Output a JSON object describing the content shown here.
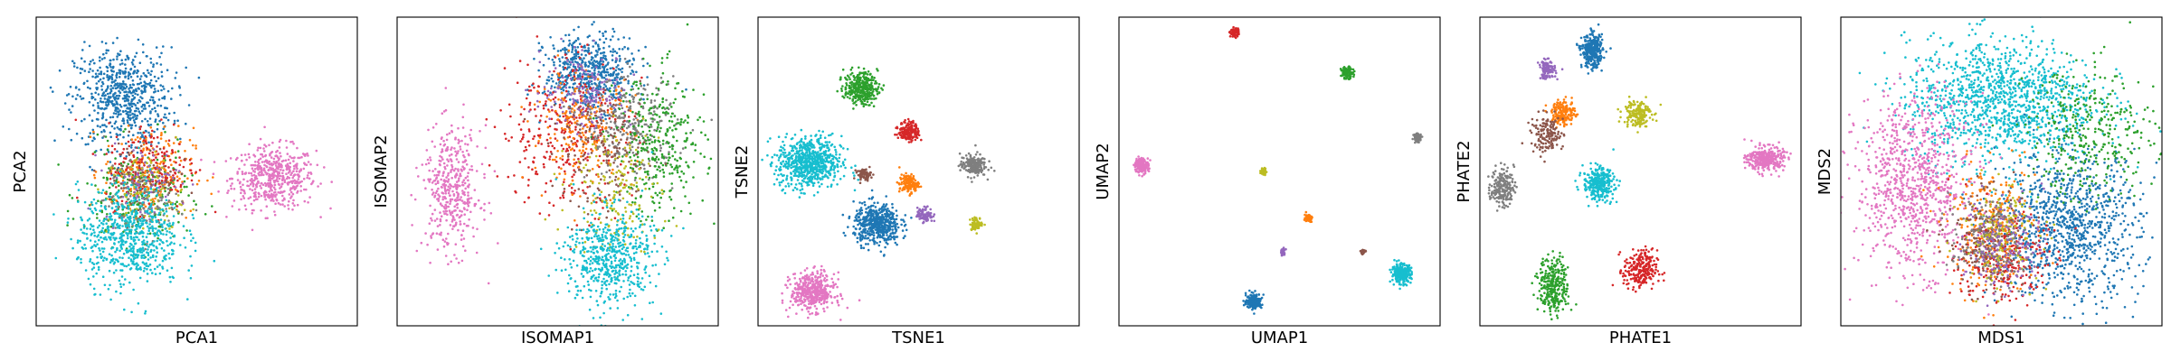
{
  "chart_data": [
    {
      "type": "scatter",
      "xlabel": "PCA1",
      "ylabel": "PCA2",
      "xlim": [
        0,
        100
      ],
      "ylim": [
        0,
        100
      ],
      "clusters": [
        {
          "color": "#e377c2",
          "cx": 74,
          "cy": 48,
          "sx": 6.5,
          "sy": 5,
          "n": 520
        },
        {
          "color": "#1f77b4",
          "cx": 27,
          "cy": 74,
          "sx": 7.5,
          "sy": 8,
          "n": 650
        },
        {
          "color": "#2ca02c",
          "cx": 31,
          "cy": 42,
          "sx": 8,
          "sy": 8,
          "n": 260
        },
        {
          "color": "#ff7f0e",
          "cx": 35,
          "cy": 50,
          "sx": 7,
          "sy": 7,
          "n": 200
        },
        {
          "color": "#d62728",
          "cx": 36,
          "cy": 52,
          "sx": 7,
          "sy": 7,
          "n": 180
        },
        {
          "color": "#8c564b",
          "cx": 32,
          "cy": 48,
          "sx": 6,
          "sy": 6,
          "n": 90
        },
        {
          "color": "#9467bd",
          "cx": 33,
          "cy": 46,
          "sx": 6,
          "sy": 6,
          "n": 90
        },
        {
          "color": "#bcbd22",
          "cx": 34,
          "cy": 42,
          "sx": 6,
          "sy": 7,
          "n": 100
        },
        {
          "color": "#7f7f7f",
          "cx": 33,
          "cy": 40,
          "sx": 6,
          "sy": 6,
          "n": 90
        },
        {
          "color": "#17becf",
          "cx": 29,
          "cy": 29,
          "sx": 8,
          "sy": 8,
          "n": 650
        }
      ]
    },
    {
      "type": "scatter",
      "xlabel": "ISOMAP1",
      "ylabel": "ISOMAP2",
      "xlim": [
        0,
        100
      ],
      "ylim": [
        0,
        100
      ],
      "clusters": [
        {
          "color": "#e377c2",
          "cx": 17,
          "cy": 44,
          "sx": 4.5,
          "sy": 10,
          "n": 420
        },
        {
          "color": "#1f77b4",
          "cx": 60,
          "cy": 82,
          "sx": 7,
          "sy": 6,
          "n": 550
        },
        {
          "color": "#d62728",
          "cx": 52,
          "cy": 63,
          "sx": 10,
          "sy": 13,
          "n": 330
        },
        {
          "color": "#ff7f0e",
          "cx": 58,
          "cy": 64,
          "sx": 8,
          "sy": 9,
          "n": 220
        },
        {
          "color": "#9467bd",
          "cx": 59,
          "cy": 76,
          "sx": 7,
          "sy": 6,
          "n": 160
        },
        {
          "color": "#7f7f7f",
          "cx": 73,
          "cy": 64,
          "sx": 7,
          "sy": 8,
          "n": 270
        },
        {
          "color": "#2ca02c",
          "cx": 82,
          "cy": 58,
          "sx": 7,
          "sy": 12,
          "n": 330
        },
        {
          "color": "#8c564b",
          "cx": 64,
          "cy": 55,
          "sx": 8,
          "sy": 10,
          "n": 150
        },
        {
          "color": "#bcbd22",
          "cx": 68,
          "cy": 44,
          "sx": 7,
          "sy": 10,
          "n": 170
        },
        {
          "color": "#17becf",
          "cx": 66,
          "cy": 22,
          "sx": 7,
          "sy": 8,
          "n": 560
        }
      ]
    },
    {
      "type": "scatter",
      "xlabel": "TSNE1",
      "ylabel": "TSNE2",
      "xlim": [
        0,
        100
      ],
      "ylim": [
        0,
        100
      ],
      "clusters": [
        {
          "color": "#2ca02c",
          "cx": 32,
          "cy": 77,
          "sx": 2.6,
          "sy": 2.6,
          "n": 330
        },
        {
          "color": "#d62728",
          "cx": 47,
          "cy": 63,
          "sx": 1.6,
          "sy": 1.6,
          "n": 170
        },
        {
          "color": "#17becf",
          "cx": 16,
          "cy": 53,
          "sx": 5,
          "sy": 4.2,
          "n": 700
        },
        {
          "color": "#8c564b",
          "cx": 33,
          "cy": 49,
          "sx": 1.1,
          "sy": 0.9,
          "n": 60
        },
        {
          "color": "#ff7f0e",
          "cx": 47,
          "cy": 46,
          "sx": 1.5,
          "sy": 1.5,
          "n": 130
        },
        {
          "color": "#7f7f7f",
          "cx": 67,
          "cy": 52,
          "sx": 2,
          "sy": 1.8,
          "n": 200
        },
        {
          "color": "#9467bd",
          "cx": 52,
          "cy": 36,
          "sx": 1.2,
          "sy": 1.2,
          "n": 90
        },
        {
          "color": "#bcbd22",
          "cx": 68,
          "cy": 33,
          "sx": 1,
          "sy": 1,
          "n": 70
        },
        {
          "color": "#1f77b4",
          "cx": 37,
          "cy": 33,
          "sx": 3.6,
          "sy": 3.3,
          "n": 520
        },
        {
          "color": "#e377c2",
          "cx": 17,
          "cy": 11,
          "sx": 3.4,
          "sy": 3,
          "n": 450
        }
      ]
    },
    {
      "type": "scatter",
      "xlabel": "UMAP1",
      "ylabel": "UMAP2",
      "xlim": [
        0,
        100
      ],
      "ylim": [
        0,
        100
      ],
      "clusters": [
        {
          "color": "#d62728",
          "cx": 36,
          "cy": 95,
          "sx": 0.7,
          "sy": 0.7,
          "n": 80
        },
        {
          "color": "#2ca02c",
          "cx": 71,
          "cy": 82,
          "sx": 0.9,
          "sy": 0.9,
          "n": 110
        },
        {
          "color": "#7f7f7f",
          "cx": 93,
          "cy": 61,
          "sx": 0.6,
          "sy": 0.7,
          "n": 80
        },
        {
          "color": "#e377c2",
          "cx": 7,
          "cy": 52,
          "sx": 1.1,
          "sy": 1.2,
          "n": 170
        },
        {
          "color": "#bcbd22",
          "cx": 45,
          "cy": 50,
          "sx": 0.4,
          "sy": 0.6,
          "n": 40
        },
        {
          "color": "#ff7f0e",
          "cx": 59,
          "cy": 35,
          "sx": 0.6,
          "sy": 0.6,
          "n": 60
        },
        {
          "color": "#8c564b",
          "cx": 76,
          "cy": 24,
          "sx": 0.4,
          "sy": 0.4,
          "n": 30
        },
        {
          "color": "#9467bd",
          "cx": 51,
          "cy": 24,
          "sx": 0.4,
          "sy": 0.6,
          "n": 40
        },
        {
          "color": "#17becf",
          "cx": 88,
          "cy": 17,
          "sx": 1.5,
          "sy": 1.5,
          "n": 260
        },
        {
          "color": "#1f77b4",
          "cx": 42,
          "cy": 8,
          "sx": 1.2,
          "sy": 1.2,
          "n": 200
        }
      ]
    },
    {
      "type": "scatter",
      "xlabel": "PHATE1",
      "ylabel": "PHATE2",
      "xlim": [
        0,
        100
      ],
      "ylim": [
        0,
        100
      ],
      "clusters": [
        {
          "color": "#1f77b4",
          "cx": 35,
          "cy": 89,
          "sx": 1.6,
          "sy": 2.6,
          "n": 350
        },
        {
          "color": "#9467bd",
          "cx": 21,
          "cy": 83,
          "sx": 1.3,
          "sy": 1.5,
          "n": 110
        },
        {
          "color": "#ff7f0e",
          "cx": 26,
          "cy": 69,
          "sx": 1.8,
          "sy": 2,
          "n": 170
        },
        {
          "color": "#8c564b",
          "cx": 21,
          "cy": 62,
          "sx": 2.5,
          "sy": 3,
          "n": 150
        },
        {
          "color": "#bcbd22",
          "cx": 49,
          "cy": 69,
          "sx": 2.2,
          "sy": 2.2,
          "n": 170
        },
        {
          "color": "#e377c2",
          "cx": 89,
          "cy": 54,
          "sx": 2.8,
          "sy": 2,
          "n": 320
        },
        {
          "color": "#17becf",
          "cx": 37,
          "cy": 46,
          "sx": 2.4,
          "sy": 2.6,
          "n": 320
        },
        {
          "color": "#7f7f7f",
          "cx": 7,
          "cy": 45,
          "sx": 1.8,
          "sy": 3,
          "n": 200
        },
        {
          "color": "#2ca02c",
          "cx": 23,
          "cy": 13,
          "sx": 2.3,
          "sy": 4.5,
          "n": 300
        },
        {
          "color": "#d62728",
          "cx": 50,
          "cy": 18,
          "sx": 2.6,
          "sy": 3.2,
          "n": 250
        }
      ]
    },
    {
      "type": "scatter",
      "xlabel": "MDS1",
      "ylabel": "MDS2",
      "xlim": [
        0,
        100
      ],
      "ylim": [
        0,
        100
      ],
      "clusters": [
        {
          "color": "#17becf",
          "cx": 50,
          "cy": 73,
          "sx": 15,
          "sy": 10,
          "n": 1250
        },
        {
          "color": "#e377c2",
          "cx": 23,
          "cy": 46,
          "sx": 9,
          "sy": 14,
          "n": 900
        },
        {
          "color": "#1f77b4",
          "cx": 71,
          "cy": 32,
          "sx": 11,
          "sy": 12,
          "n": 1000
        },
        {
          "color": "#2ca02c",
          "cx": 78,
          "cy": 62,
          "sx": 10,
          "sy": 11,
          "n": 350
        },
        {
          "color": "#ff7f0e",
          "cx": 47,
          "cy": 32,
          "sx": 7,
          "sy": 10,
          "n": 280
        },
        {
          "color": "#d62728",
          "cx": 50,
          "cy": 22,
          "sx": 7,
          "sy": 8,
          "n": 260
        },
        {
          "color": "#8c564b",
          "cx": 45,
          "cy": 28,
          "sx": 6,
          "sy": 8,
          "n": 170
        },
        {
          "color": "#bcbd22",
          "cx": 50,
          "cy": 30,
          "sx": 6,
          "sy": 8,
          "n": 170
        },
        {
          "color": "#7f7f7f",
          "cx": 46,
          "cy": 27,
          "sx": 6,
          "sy": 7,
          "n": 150
        },
        {
          "color": "#9467bd",
          "cx": 51,
          "cy": 27,
          "sx": 6,
          "sy": 8,
          "n": 160
        }
      ]
    }
  ]
}
